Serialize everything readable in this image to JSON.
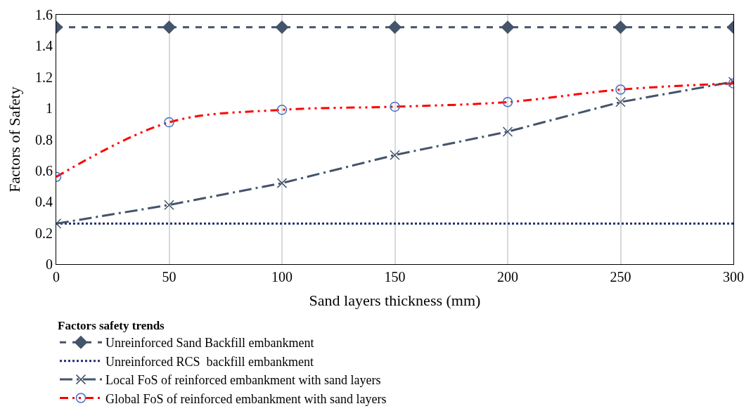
{
  "chart_data": {
    "type": "line",
    "xlabel": "Sand layers thickness (mm)",
    "ylabel": "Factors of Safety",
    "legend_title": "Factors safety trends",
    "x": [
      0,
      50,
      100,
      150,
      200,
      250,
      300
    ],
    "series": [
      {
        "name": "Unreinforced Sand Backfill embankment",
        "color": "#44546a",
        "values": [
          1.52,
          1.52,
          1.52,
          1.52,
          1.52,
          1.52,
          1.52
        ],
        "marker": "diamond",
        "line_style": "dashed"
      },
      {
        "name": "Unreinforced RCS  backfill embankment",
        "color": "#1f2f6e",
        "values": [
          0.26,
          0.26,
          0.26,
          0.26,
          0.26,
          0.26,
          0.26
        ],
        "marker": "none",
        "line_style": "dotted"
      },
      {
        "name": "Local FoS of reinforced embankment with sand layers",
        "color": "#44546a",
        "values": [
          0.26,
          0.38,
          0.52,
          0.7,
          0.85,
          1.04,
          1.17
        ],
        "marker": "cross",
        "line_style": "dashdot"
      },
      {
        "name": "Global FoS of reinforced embankment with sand layers",
        "color": "#ff0000",
        "values": [
          0.56,
          0.91,
          0.99,
          1.01,
          1.04,
          1.12,
          1.16
        ],
        "marker": "circle",
        "line_style": "dashdotdot"
      }
    ],
    "xlim": [
      0,
      300
    ],
    "xticks": [
      0,
      50,
      100,
      150,
      200,
      250,
      300
    ],
    "ylim": [
      0,
      1.6
    ],
    "yticks": [
      0,
      {
        "value": 0.2,
        "label": "0.2"
      },
      {
        "value": 0.4,
        "label": "0.4"
      },
      {
        "value": 0.6,
        "label": "0.6"
      },
      {
        "value": 0.8,
        "label": "0.8"
      },
      1,
      {
        "value": 1.2,
        "label": "1.2"
      },
      {
        "value": 1.4,
        "label": "1.4"
      },
      {
        "value": 1.6,
        "label": "1.6"
      }
    ],
    "grid": "x",
    "legend": "bottom left"
  }
}
